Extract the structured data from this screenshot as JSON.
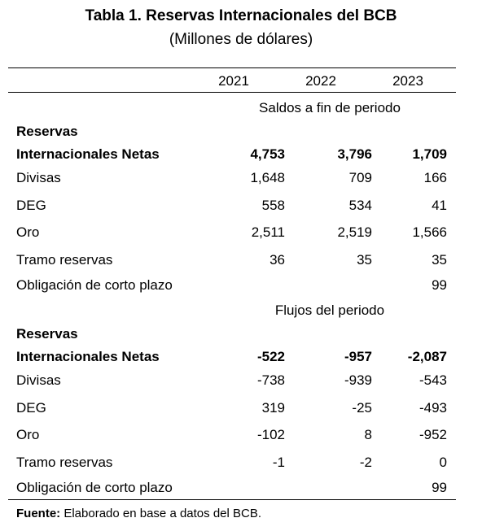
{
  "title": "Tabla 1. Reservas Internacionales del BCB",
  "subtitle": "(Millones de dólares)",
  "table": {
    "header": [
      "2021",
      "2022",
      "2023"
    ],
    "sections": [
      {
        "label": "Saldos a fin de periodo",
        "rows": [
          {
            "label": [
              "Reservas",
              "Internacionales Netas"
            ],
            "bold": true,
            "cells": [
              "4,753",
              "3,796",
              "1,709"
            ]
          },
          {
            "label": [
              "Divisas"
            ],
            "cells": [
              "1,648",
              "709",
              "166"
            ]
          },
          {
            "label": [
              "DEG"
            ],
            "cells": [
              "558",
              "534",
              "41"
            ]
          },
          {
            "label": [
              "Oro"
            ],
            "cells": [
              "2,511",
              "2,519",
              "1,566"
            ]
          },
          {
            "label": [
              "Tramo reservas"
            ],
            "cells": [
              "36",
              "35",
              "35"
            ]
          },
          {
            "label": [
              "Obligación de corto plazo"
            ],
            "cells": [
              null,
              null,
              "99"
            ]
          }
        ]
      },
      {
        "label": "Flujos del periodo",
        "rows": [
          {
            "label": [
              "Reservas",
              "Internacionales Netas"
            ],
            "bold": true,
            "cells": [
              "-522",
              "-957",
              "-2,087"
            ]
          },
          {
            "label": [
              "Divisas"
            ],
            "cells": [
              "-738",
              "-939",
              "-543"
            ]
          },
          {
            "label": [
              "DEG"
            ],
            "cells": [
              "319",
              "-25",
              "-493"
            ]
          },
          {
            "label": [
              "Oro"
            ],
            "cells": [
              "-102",
              "8",
              "-952"
            ]
          },
          {
            "label": [
              "Tramo reservas"
            ],
            "cells": [
              "-1",
              "-2",
              "0"
            ]
          },
          {
            "label": [
              "Obligación de corto plazo"
            ],
            "cells": [
              null,
              null,
              "99"
            ]
          }
        ]
      }
    ]
  },
  "footer": {
    "label": "Fuente:",
    "text": "Elaborado en base a datos del BCB."
  }
}
